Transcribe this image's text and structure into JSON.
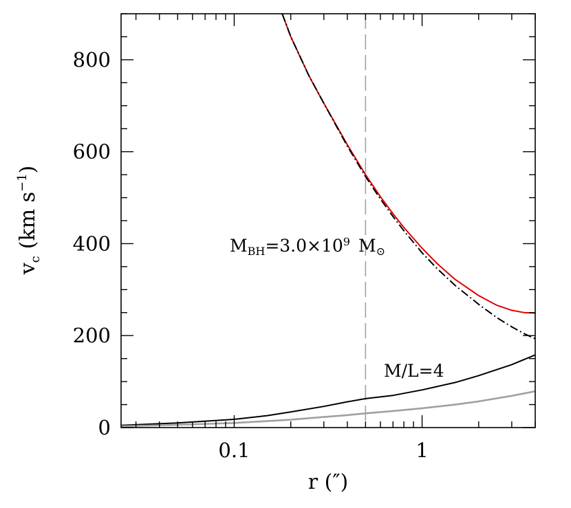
{
  "chart_data": {
    "type": "line",
    "xlabel": "r (″)",
    "ylabel_main": "v",
    "ylabel_sub": "c",
    "ylabel_units": "(km s",
    "ylabel_sup": "−1",
    "ylabel_close": ")",
    "x_scale": "log",
    "xlim": [
      0.025,
      4.0
    ],
    "ylim": [
      0,
      900
    ],
    "x_major_ticks": [
      0.1,
      1
    ],
    "x_tick_labels": [
      "0.1",
      "1"
    ],
    "y_major_ticks": [
      0,
      200,
      400,
      600,
      800
    ],
    "y_tick_labels": [
      "0",
      "200",
      "400",
      "600",
      "800"
    ],
    "annotations": {
      "mbh_prefix": "M",
      "mbh_sub": "BH",
      "mbh_value": "=3.0×10",
      "mbh_exp": "9",
      "mbh_unit": "M",
      "mbh_unit_symbol": "⊙",
      "ml_label": "M/L=4"
    },
    "vertical_line_x": 0.5,
    "series": [
      {
        "key": "total",
        "color": "#e00000",
        "style": "solid",
        "x": [
          0.18,
          0.2,
          0.25,
          0.3,
          0.4,
          0.5,
          0.6,
          0.7,
          0.8,
          1.0,
          1.2,
          1.5,
          2.0,
          2.5,
          3.0,
          3.5,
          4.0
        ],
        "y": [
          900,
          850,
          765,
          705,
          615,
          550,
          502,
          465,
          435,
          390,
          357,
          322,
          287,
          266,
          255,
          250,
          249
        ]
      },
      {
        "key": "black_hole",
        "color": "#000000",
        "style": "dashdot",
        "x": [
          0.18,
          0.2,
          0.25,
          0.3,
          0.4,
          0.5,
          0.6,
          0.7,
          0.8,
          1.0,
          1.2,
          1.5,
          2.0,
          2.5,
          3.0,
          3.5,
          4.0
        ],
        "y": [
          900,
          850,
          765,
          705,
          612,
          546,
          497,
          459,
          428,
          380,
          346,
          309,
          268,
          239,
          219,
          204,
          193
        ]
      },
      {
        "key": "stars_ml4",
        "color": "#000000",
        "style": "solid",
        "x": [
          0.025,
          0.05,
          0.1,
          0.15,
          0.2,
          0.3,
          0.4,
          0.5,
          0.7,
          1.0,
          1.5,
          2.0,
          3.0,
          4.0
        ],
        "y": [
          5,
          10,
          18,
          26,
          34,
          46,
          56,
          63,
          70,
          82,
          98,
          113,
          137,
          158
        ]
      },
      {
        "key": "stars_grey",
        "color": "#a0a0a0",
        "style": "solid",
        "x": [
          0.025,
          0.05,
          0.1,
          0.15,
          0.2,
          0.3,
          0.4,
          0.5,
          0.7,
          1.0,
          1.5,
          2.0,
          3.0,
          4.0
        ],
        "y": [
          3,
          6,
          10,
          14,
          17,
          23,
          27,
          31,
          36,
          42,
          50,
          57,
          69,
          79
        ]
      }
    ]
  }
}
